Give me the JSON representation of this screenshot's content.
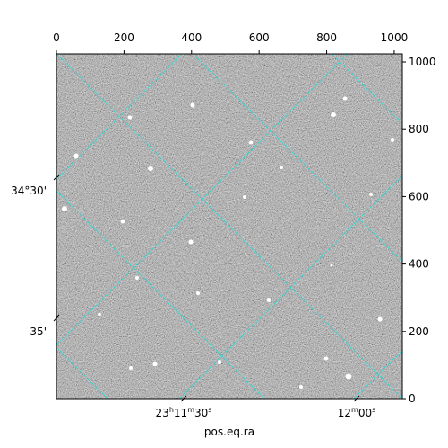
{
  "chart_data": {
    "type": "image",
    "xlabel": "pos.eq.ra",
    "xlim": [
      0,
      1024
    ],
    "ylim": [
      0,
      1024
    ],
    "xticks": [
      0,
      200,
      400,
      600,
      800,
      1000
    ],
    "yticks": [
      0,
      200,
      400,
      600,
      800,
      1000
    ],
    "ra_tick_labels": [
      [
        "23",
        "h",
        "11",
        "m",
        "30",
        "s"
      ],
      [
        "12",
        "m",
        "00",
        "s"
      ]
    ],
    "dec_tick_labels": [
      "34°30'",
      "35'"
    ],
    "grid_color": "#2fd8d8"
  }
}
